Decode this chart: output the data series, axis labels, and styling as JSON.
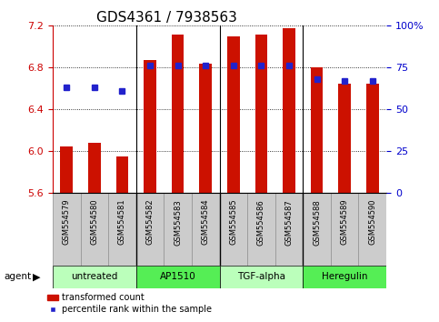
{
  "title": "GDS4361 / 7938563",
  "samples": [
    "GSM554579",
    "GSM554580",
    "GSM554581",
    "GSM554582",
    "GSM554583",
    "GSM554584",
    "GSM554585",
    "GSM554586",
    "GSM554587",
    "GSM554588",
    "GSM554589",
    "GSM554590"
  ],
  "bar_values": [
    6.05,
    6.08,
    5.95,
    6.87,
    7.12,
    6.84,
    7.1,
    7.12,
    7.18,
    6.8,
    6.65,
    6.65
  ],
  "percentile_values": [
    63,
    63,
    61,
    76,
    76,
    76,
    76,
    76,
    76,
    68,
    67,
    67
  ],
  "y_min": 5.6,
  "y_max": 7.2,
  "y_ticks": [
    5.6,
    6.0,
    6.4,
    6.8,
    7.2
  ],
  "y2_ticks": [
    0,
    25,
    50,
    75,
    100
  ],
  "bar_color": "#cc1100",
  "dot_color": "#2222cc",
  "background_color": "#ffffff",
  "agent_groups": [
    {
      "label": "untreated",
      "start": 0,
      "end": 3,
      "color": "#bbffbb"
    },
    {
      "label": "AP1510",
      "start": 3,
      "end": 6,
      "color": "#55ee55"
    },
    {
      "label": "TGF-alpha",
      "start": 6,
      "end": 9,
      "color": "#bbffbb"
    },
    {
      "label": "Heregulin",
      "start": 9,
      "end": 12,
      "color": "#55ee55"
    }
  ],
  "legend_bar_label": "transformed count",
  "legend_dot_label": "percentile rank within the sample",
  "title_fontsize": 11,
  "tick_fontsize": 8,
  "bar_width": 0.45
}
